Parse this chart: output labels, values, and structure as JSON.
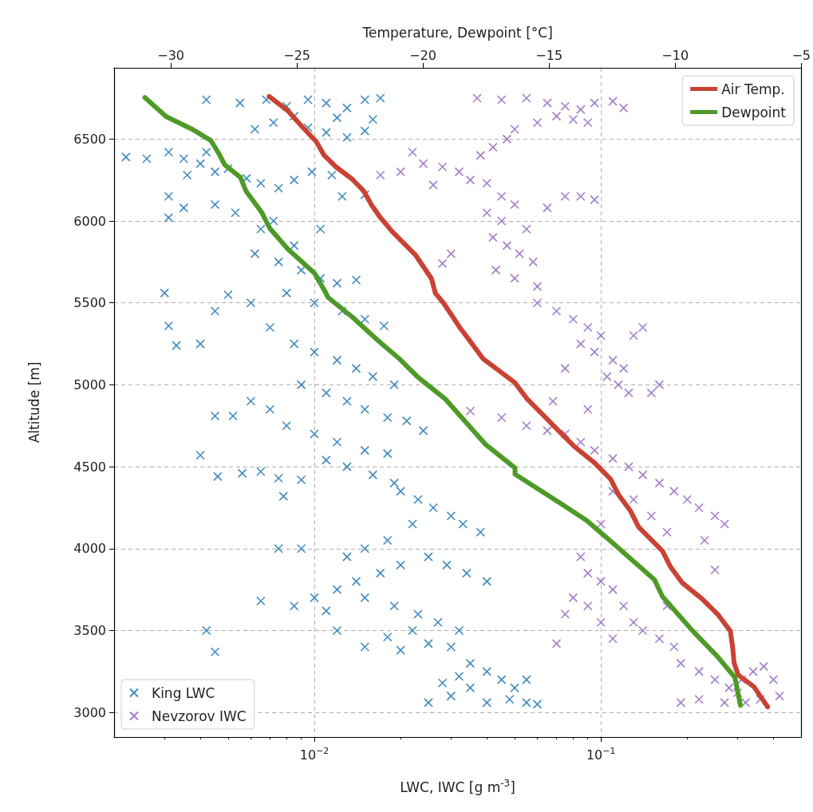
{
  "chart_data": {
    "type": "scatter",
    "xlabel": "LWC, IWC [g m$^{-3}$]",
    "ylabel": "Altitude [m]",
    "x2label": "Temperature, Dewpoint [°C]",
    "log": "x",
    "grid": true,
    "marker": "cross",
    "legend": [
      "top right",
      "bottom left"
    ],
    "xlim": [
      0.002,
      0.5
    ],
    "xticks": [
      {
        "value": 0.01,
        "label": "10$^{−2}$"
      },
      {
        "value": 0.1,
        "label": "10$^{−1}$"
      }
    ],
    "x2lim": [
      -32.25,
      -5
    ],
    "x2ticks": [
      {
        "value": -30,
        "label": "−30"
      },
      {
        "value": -25,
        "label": "−25"
      },
      {
        "value": -20,
        "label": "−20"
      },
      {
        "value": -15,
        "label": "−15"
      },
      {
        "value": -10,
        "label": "−10"
      },
      {
        "value": -5,
        "label": "−5"
      }
    ],
    "ylim": [
      2850,
      6935
    ],
    "yticks": [
      3000,
      3500,
      4000,
      4500,
      5000,
      5500,
      6000,
      6500
    ],
    "series": [
      {
        "name": "King LWC",
        "color": "#1f77b4",
        "x": [
          0.0042,
          0.0055,
          0.0068,
          0.008,
          0.0095,
          0.011,
          0.013,
          0.015,
          0.017,
          0.016,
          0.012,
          0.0085,
          0.0072,
          0.0095,
          0.011,
          0.013,
          0.015,
          0.0062,
          0.0022,
          0.0026,
          0.0031,
          0.0035,
          0.004,
          0.0045,
          0.005,
          0.0058,
          0.0065,
          0.0075,
          0.0085,
          0.0098,
          0.0115,
          0.0125,
          0.015,
          0.0042,
          0.0036,
          0.0031,
          0.0035,
          0.0031,
          0.0045,
          0.0053,
          0.0065,
          0.0072,
          0.0085,
          0.0105,
          0.0062,
          0.0075,
          0.009,
          0.0105,
          0.012,
          0.014,
          0.008,
          0.01,
          0.0125,
          0.015,
          0.0175,
          0.006,
          0.005,
          0.003,
          0.0031,
          0.004,
          0.0033,
          0.0045,
          0.007,
          0.0085,
          0.01,
          0.012,
          0.014,
          0.016,
          0.019,
          0.009,
          0.011,
          0.013,
          0.015,
          0.018,
          0.021,
          0.024,
          0.006,
          0.007,
          0.0052,
          0.0045,
          0.008,
          0.01,
          0.012,
          0.015,
          0.018,
          0.004,
          0.0046,
          0.0056,
          0.0065,
          0.0075,
          0.009,
          0.011,
          0.013,
          0.016,
          0.019,
          0.0078,
          0.02,
          0.023,
          0.026,
          0.03,
          0.033,
          0.038,
          0.022,
          0.018,
          0.015,
          0.013,
          0.02,
          0.025,
          0.029,
          0.034,
          0.04,
          0.017,
          0.014,
          0.012,
          0.009,
          0.0075,
          0.01,
          0.011,
          0.0085,
          0.0065,
          0.015,
          0.019,
          0.023,
          0.027,
          0.032,
          0.022,
          0.018,
          0.012,
          0.0042,
          0.0045,
          0.015,
          0.02,
          0.025,
          0.03,
          0.035,
          0.04,
          0.045,
          0.05,
          0.035,
          0.03,
          0.025,
          0.04,
          0.048,
          0.055,
          0.06,
          0.055,
          0.032,
          0.028
        ],
        "values": [
          6740,
          6720,
          6740,
          6700,
          6740,
          6720,
          6690,
          6740,
          6750,
          6620,
          6630,
          6640,
          6600,
          6570,
          6540,
          6510,
          6550,
          6560,
          6390,
          6380,
          6420,
          6380,
          6350,
          6300,
          6320,
          6260,
          6230,
          6200,
          6250,
          6300,
          6280,
          6150,
          6160,
          6420,
          6280,
          6150,
          6080,
          6020,
          6100,
          6050,
          5950,
          6000,
          5850,
          5950,
          5800,
          5750,
          5700,
          5650,
          5620,
          5640,
          5560,
          5500,
          5450,
          5400,
          5360,
          5500,
          5550,
          5560,
          5360,
          5250,
          5240,
          5450,
          5350,
          5250,
          5200,
          5150,
          5100,
          5050,
          5000,
          5000,
          4950,
          4900,
          4850,
          4800,
          4780,
          4720,
          4900,
          4850,
          4810,
          4810,
          4750,
          4700,
          4650,
          4600,
          4580,
          4570,
          4440,
          4460,
          4470,
          4430,
          4420,
          4540,
          4500,
          4450,
          4400,
          4320,
          4350,
          4300,
          4250,
          4200,
          4150,
          4100,
          4150,
          4050,
          4000,
          3950,
          3900,
          3950,
          3900,
          3850,
          3800,
          3850,
          3800,
          3750,
          4000,
          4000,
          3700,
          3620,
          3650,
          3680,
          3700,
          3650,
          3600,
          3550,
          3500,
          3500,
          3460,
          3500,
          3500,
          3370,
          3400,
          3380,
          3420,
          3400,
          3300,
          3250,
          3200,
          3150,
          3150,
          3100,
          3060,
          3060,
          3080,
          3060,
          3050,
          3200,
          3220,
          3180
        ]
      },
      {
        "name": "Nevzorov IWC",
        "color": "#9467bd",
        "x": [
          0.037,
          0.045,
          0.055,
          0.065,
          0.075,
          0.085,
          0.095,
          0.11,
          0.12,
          0.07,
          0.08,
          0.06,
          0.09,
          0.05,
          0.017,
          0.02,
          0.024,
          0.028,
          0.032,
          0.038,
          0.042,
          0.047,
          0.035,
          0.04,
          0.026,
          0.022,
          0.045,
          0.05,
          0.04,
          0.045,
          0.055,
          0.042,
          0.047,
          0.052,
          0.058,
          0.043,
          0.05,
          0.06,
          0.03,
          0.028,
          0.075,
          0.085,
          0.095,
          0.065,
          0.06,
          0.07,
          0.08,
          0.09,
          0.1,
          0.085,
          0.095,
          0.11,
          0.12,
          0.105,
          0.115,
          0.125,
          0.15,
          0.16,
          0.13,
          0.14,
          0.075,
          0.068,
          0.09,
          0.035,
          0.045,
          0.055,
          0.065,
          0.075,
          0.085,
          0.095,
          0.11,
          0.125,
          0.14,
          0.16,
          0.18,
          0.2,
          0.22,
          0.25,
          0.27,
          0.15,
          0.17,
          0.23,
          0.13,
          0.11,
          0.1,
          0.25,
          0.085,
          0.09,
          0.1,
          0.11,
          0.08,
          0.09,
          0.12,
          0.13,
          0.1,
          0.11,
          0.14,
          0.16,
          0.18,
          0.075,
          0.07,
          0.17,
          0.19,
          0.22,
          0.25,
          0.28,
          0.31,
          0.34,
          0.37,
          0.4,
          0.42,
          0.36,
          0.32,
          0.27,
          0.22,
          0.19,
          0.3
        ],
        "values": [
          6750,
          6740,
          6750,
          6720,
          6700,
          6680,
          6720,
          6730,
          6690,
          6640,
          6620,
          6600,
          6600,
          6560,
          6280,
          6300,
          6350,
          6330,
          6300,
          6400,
          6450,
          6500,
          6250,
          6230,
          6220,
          6420,
          6150,
          6100,
          6050,
          6000,
          5950,
          5900,
          5850,
          5800,
          5750,
          5700,
          5650,
          5600,
          5800,
          5740,
          6150,
          6150,
          6130,
          6080,
          5500,
          5450,
          5400,
          5350,
          5300,
          5250,
          5200,
          5150,
          5100,
          5050,
          5000,
          4950,
          4950,
          5000,
          5300,
          5350,
          5100,
          4900,
          4850,
          4840,
          4800,
          4750,
          4720,
          4700,
          4650,
          4600,
          4550,
          4500,
          4450,
          4400,
          4350,
          4300,
          4250,
          4200,
          4150,
          4200,
          4100,
          4050,
          4300,
          4350,
          4150,
          3870,
          3950,
          3850,
          3800,
          3750,
          3700,
          3650,
          3650,
          3550,
          3550,
          3450,
          3500,
          3450,
          3400,
          3600,
          3420,
          3650,
          3300,
          3250,
          3200,
          3150,
          3200,
          3250,
          3280,
          3200,
          3100,
          3080,
          3060,
          3060,
          3080,
          3060,
          3120
        ]
      },
      {
        "name": "Air Temp.",
        "type": "line",
        "axis": "x2",
        "marker": "none",
        "color": "#c94234",
        "x": [
          -26.1,
          -25.35,
          -24.78,
          -24.24,
          -23.93,
          -23.45,
          -22.82,
          -22.35,
          -22.03,
          -21.72,
          -21.24,
          -20.77,
          -20.3,
          -19.98,
          -19.66,
          -19.51,
          -19.19,
          -18.87,
          -18.56,
          -18.08,
          -17.61,
          -16.98,
          -16.35,
          -15.87,
          -15.24,
          -14.61,
          -13.98,
          -13.19,
          -12.56,
          -12.24,
          -11.77,
          -11.45,
          -10.98,
          -10.5,
          -10.18,
          -9.71,
          -8.92,
          -8.29,
          -7.81,
          -7.72,
          -7.66,
          -7.5,
          -6.87,
          -6.55,
          -6.33
        ],
        "values": [
          6760,
          6671,
          6574,
          6486,
          6403,
          6330,
          6257,
          6183,
          6095,
          6027,
          5939,
          5866,
          5793,
          5720,
          5647,
          5559,
          5500,
          5427,
          5354,
          5256,
          5158,
          5085,
          5012,
          4914,
          4816,
          4718,
          4621,
          4523,
          4425,
          4328,
          4230,
          4132,
          4059,
          3985,
          3888,
          3790,
          3692,
          3595,
          3497,
          3399,
          3302,
          3229,
          3156,
          3083,
          3034
        ]
      },
      {
        "name": "Dewpoint",
        "type": "line",
        "axis": "x2",
        "marker": "none",
        "color": "#4e9a28",
        "x": [
          -31.03,
          -30.18,
          -29.14,
          -28.41,
          -28.1,
          -27.87,
          -27.24,
          -27.02,
          -26.39,
          -26.07,
          -25.35,
          -24.3,
          -23.86,
          -23.77,
          -22.82,
          -21.78,
          -20.93,
          -20.2,
          -19.12,
          -17.51,
          -16.35,
          -16.35,
          -14.51,
          -13.5,
          -12.33,
          -10.82,
          -10.5,
          -9.3,
          -8.32,
          -7.63,
          -7.41
        ],
        "values": [
          6754,
          6637,
          6559,
          6491,
          6413,
          6344,
          6266,
          6183,
          6051,
          5954,
          5827,
          5681,
          5563,
          5534,
          5416,
          5270,
          5158,
          5046,
          4914,
          4635,
          4493,
          4454,
          4273,
          4171,
          4015,
          3810,
          3707,
          3497,
          3341,
          3214,
          3043
        ]
      }
    ]
  }
}
